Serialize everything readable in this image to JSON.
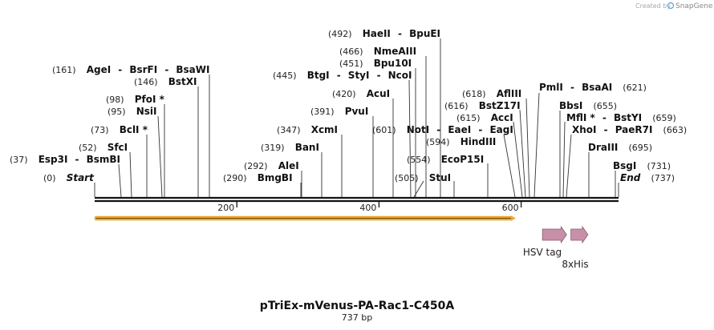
{
  "credit": {
    "prefix": "Created by",
    "brand": "SnapGene"
  },
  "map": {
    "name": "pTriEx-mVenus-PA-Rac1-C450A",
    "length_label": "737 bp",
    "length_bp": 737,
    "scale_ticks": [
      "200",
      "400",
      "600"
    ],
    "scale_values": [
      200,
      400,
      600
    ]
  },
  "sites": [
    {
      "id": "start",
      "pos": "(0)",
      "names": [
        "Start"
      ],
      "bp": 0
    },
    {
      "id": "esp3i",
      "pos": "(37)",
      "names": [
        "Esp3I",
        "BsmBI"
      ],
      "bp": 37
    },
    {
      "id": "sfci",
      "pos": "(52)",
      "names": [
        "SfcI"
      ],
      "bp": 52
    },
    {
      "id": "bcli",
      "pos": "(73)",
      "names": [
        "BclI *"
      ],
      "bp": 73
    },
    {
      "id": "nsii",
      "pos": "(95)",
      "names": [
        "NsiI"
      ],
      "bp": 95
    },
    {
      "id": "pfoi",
      "pos": "(98)",
      "names": [
        "PfoI *"
      ],
      "bp": 98
    },
    {
      "id": "bstxi",
      "pos": "(146)",
      "names": [
        "BstXI"
      ],
      "bp": 146
    },
    {
      "id": "agei",
      "pos": "(161)",
      "names": [
        "AgeI",
        "BsrFI",
        "BsaWI"
      ],
      "bp": 161
    },
    {
      "id": "bmgbi",
      "pos": "(290)",
      "names": [
        "BmgBI"
      ],
      "bp": 290
    },
    {
      "id": "alei",
      "pos": "(292)",
      "names": [
        "AleI"
      ],
      "bp": 292
    },
    {
      "id": "bani",
      "pos": "(319)",
      "names": [
        "BanI"
      ],
      "bp": 319
    },
    {
      "id": "xcmi",
      "pos": "(347)",
      "names": [
        "XcmI"
      ],
      "bp": 347
    },
    {
      "id": "pvui",
      "pos": "(391)",
      "names": [
        "PvuI"
      ],
      "bp": 391
    },
    {
      "id": "acui",
      "pos": "(420)",
      "names": [
        "AcuI"
      ],
      "bp": 420
    },
    {
      "id": "btgi",
      "pos": "(445)",
      "names": [
        "BtgI",
        "StyI",
        "NcoI"
      ],
      "bp": 445
    },
    {
      "id": "bpu10i",
      "pos": "(451)",
      "names": [
        "Bpu10I"
      ],
      "bp": 451
    },
    {
      "id": "nmeaiii",
      "pos": "(466)",
      "names": [
        "NmeAIII"
      ],
      "bp": 466
    },
    {
      "id": "haeii",
      "pos": "(492)",
      "names": [
        "HaeII",
        "BpuEI"
      ],
      "bp": 492
    },
    {
      "id": "stui",
      "pos": "(505)",
      "names": [
        "StuI"
      ],
      "bp": 505
    },
    {
      "id": "ecop15i",
      "pos": "(554)",
      "names": [
        "EcoP15I"
      ],
      "bp": 554
    },
    {
      "id": "hindiii",
      "pos": "(594)",
      "names": [
        "HindIII"
      ],
      "bp": 594
    },
    {
      "id": "noti",
      "pos": "(601)",
      "names": [
        "NotI",
        "EaeI",
        "EagI"
      ],
      "bp": 601
    },
    {
      "id": "acci",
      "pos": "(615)",
      "names": [
        "AccI"
      ],
      "bp": 615
    },
    {
      "id": "bstz17i",
      "pos": "(616)",
      "names": [
        "BstZ17I"
      ],
      "bp": 616
    },
    {
      "id": "afliii",
      "pos": "(618)",
      "names": [
        "AflIII"
      ],
      "bp": 618
    },
    {
      "id": "pmli",
      "pos": "(621)",
      "names": [
        "PmlI",
        "BsaAI"
      ],
      "bp": 621
    },
    {
      "id": "bbsi",
      "pos": "(655)",
      "names": [
        "BbsI"
      ],
      "bp": 655
    },
    {
      "id": "mfli",
      "pos": "(659)",
      "names": [
        "MflI *",
        "BstYI"
      ],
      "bp": 659
    },
    {
      "id": "xhoi",
      "pos": "(663)",
      "names": [
        "XhoI",
        "PaeR7I"
      ],
      "bp": 663
    },
    {
      "id": "draiii",
      "pos": "(695)",
      "names": [
        "DraIII"
      ],
      "bp": 695
    },
    {
      "id": "bsgi",
      "pos": "(731)",
      "names": [
        "BsgI"
      ],
      "bp": 731
    },
    {
      "id": "end",
      "pos": "(737)",
      "names": [
        "End"
      ],
      "bp": 737
    }
  ],
  "features": [
    {
      "id": "hsv-tag",
      "label": "HSV tag",
      "start_bp": 630,
      "end_bp": 664,
      "color": "#c890a8"
    },
    {
      "id": "his-tag",
      "label": "8xHis",
      "start_bp": 670,
      "end_bp": 694,
      "color": "#c890a8"
    }
  ],
  "orf": {
    "start_bp": 0,
    "end_bp": 590,
    "color": "#f5a623"
  },
  "colors": {
    "backbone": "#111111",
    "leader": "#333333"
  }
}
